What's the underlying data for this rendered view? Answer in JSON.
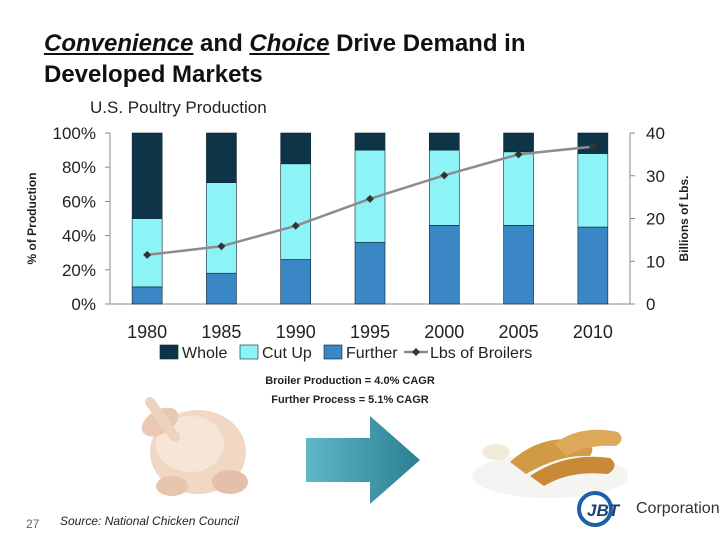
{
  "slide": {
    "title_parts": [
      "Convenience",
      " and ",
      "Choice",
      " Drive Demand in",
      "Developed Markets"
    ],
    "subtitle": "U.S. Poultry Production",
    "notes": [
      "Broiler Production = 4.0% CAGR",
      "Further Process = 5.1% CAGR"
    ],
    "source": "Source: National Chicken Council",
    "page_number": "27",
    "logo_text": "Corporation",
    "logo_mark": "JBT"
  },
  "chart_data": {
    "type": "bar",
    "stacked": true,
    "categories": [
      "1980",
      "1985",
      "1990",
      "1995",
      "2000",
      "2005",
      "2010"
    ],
    "series": [
      {
        "name": "Further",
        "values": [
          10,
          18,
          26,
          36,
          46,
          46,
          45
        ],
        "color": "#3b86c4"
      },
      {
        "name": "Cut Up",
        "values": [
          40,
          53,
          56,
          54,
          44,
          43,
          43
        ],
        "color": "#8cf3f7"
      },
      {
        "name": "Whole",
        "values": [
          50,
          29,
          18,
          10,
          10,
          11,
          12
        ],
        "color": "#0d3547"
      }
    ],
    "line_series": {
      "name": "Lbs of Broilers",
      "values": [
        11.5,
        13.5,
        18.3,
        24.6,
        30.1,
        35.0,
        36.8
      ],
      "color": "#8c8c8c"
    },
    "legend_order": [
      "Whole",
      "Cut Up",
      "Further",
      "Lbs of Broilers"
    ],
    "ylabel": "% of Production",
    "y2label": "Billions of Lbs.",
    "ylim": [
      0,
      100
    ],
    "y2lim": [
      0,
      40
    ],
    "yticks": [
      "0%",
      "20%",
      "40%",
      "60%",
      "80%",
      "100%"
    ],
    "y2ticks": [
      "0",
      "10",
      "20",
      "30",
      "40"
    ],
    "legend_position": "bottom",
    "grid": false
  }
}
